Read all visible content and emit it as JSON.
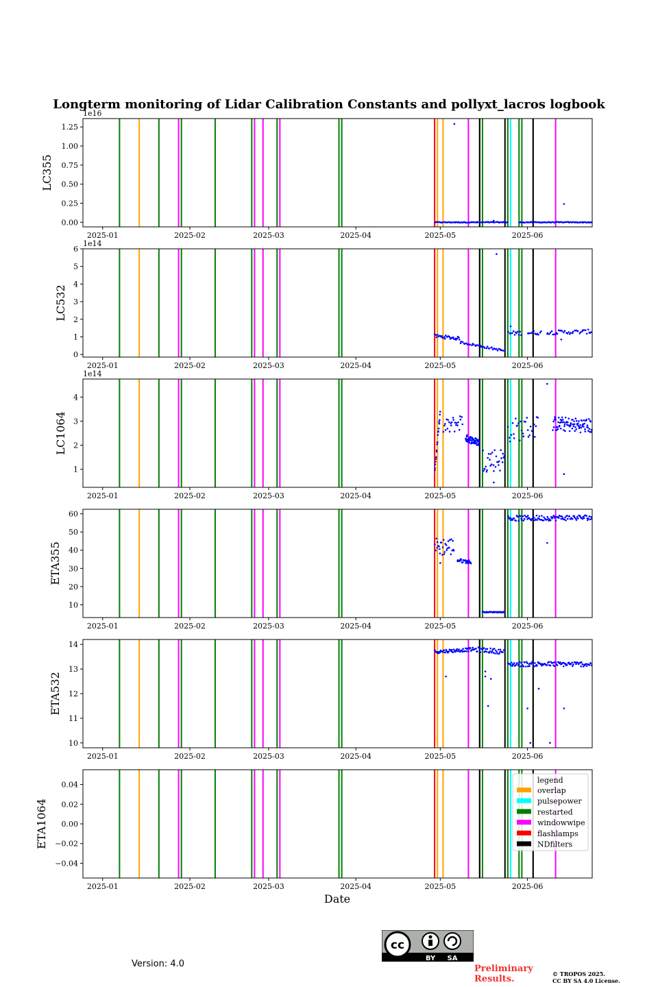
{
  "chart_data": {
    "type": "scatter",
    "title": "Longterm monitoring of Lidar Calibration Constants and pollyxt_lacros logbook",
    "xlabel": "Date",
    "x_range": [
      "2024-12-25",
      "2025-06-24"
    ],
    "x_ticks": [
      {
        "date": "2025-01-01",
        "label": "2025-01"
      },
      {
        "date": "2025-02-01",
        "label": "2025-02"
      },
      {
        "date": "2025-03-01",
        "label": "2025-03"
      },
      {
        "date": "2025-04-01",
        "label": "2025-04"
      },
      {
        "date": "2025-05-01",
        "label": "2025-05"
      },
      {
        "date": "2025-06-01",
        "label": "2025-06"
      }
    ],
    "events": [
      {
        "date": "2025-01-07",
        "type": "restarted"
      },
      {
        "date": "2025-01-14",
        "type": "overlap"
      },
      {
        "date": "2025-01-21",
        "type": "restarted"
      },
      {
        "date": "2025-01-28",
        "type": "windowwipe"
      },
      {
        "date": "2025-01-29",
        "type": "restarted"
      },
      {
        "date": "2025-02-10",
        "type": "restarted"
      },
      {
        "date": "2025-02-23",
        "type": "restarted"
      },
      {
        "date": "2025-02-24",
        "type": "windowwipe"
      },
      {
        "date": "2025-02-27",
        "type": "windowwipe"
      },
      {
        "date": "2025-03-04",
        "type": "restarted"
      },
      {
        "date": "2025-03-05",
        "type": "windowwipe"
      },
      {
        "date": "2025-03-26",
        "type": "restarted"
      },
      {
        "date": "2025-03-27",
        "type": "restarted"
      },
      {
        "date": "2025-04-29",
        "type": "flashlamps"
      },
      {
        "date": "2025-04-30",
        "type": "overlap"
      },
      {
        "date": "2025-05-02",
        "type": "overlap"
      },
      {
        "date": "2025-05-11",
        "type": "windowwipe"
      },
      {
        "date": "2025-05-15",
        "type": "restarted"
      },
      {
        "date": "2025-05-15",
        "type": "NDfilters"
      },
      {
        "date": "2025-05-16",
        "type": "restarted"
      },
      {
        "date": "2025-05-24",
        "type": "NDfilters"
      },
      {
        "date": "2025-05-25",
        "type": "restarted"
      },
      {
        "date": "2025-05-26",
        "type": "pulsepower"
      },
      {
        "date": "2025-05-29",
        "type": "restarted"
      },
      {
        "date": "2025-05-30",
        "type": "restarted"
      },
      {
        "date": "2025-06-03",
        "type": "restarted"
      },
      {
        "date": "2025-06-03",
        "type": "NDfilters"
      },
      {
        "date": "2025-06-11",
        "type": "windowwipe"
      }
    ],
    "panels": [
      {
        "name": "LC355",
        "ylabel": "LC355",
        "ylim": [
          -0.06,
          1.36
        ],
        "offset_label": "1e16",
        "yticks": [
          0,
          0.25,
          0.5,
          0.75,
          1.0,
          1.25
        ],
        "ytick_labels": [
          "0.00",
          "0.25",
          "0.50",
          "0.75",
          "1.00",
          "1.25"
        ],
        "series": [
          {
            "from": "2025-04-29",
            "to": "2025-06-24",
            "base": 0.0,
            "jitter": 0.005,
            "n": 150,
            "gaps": [
              [
                "2025-05-25",
                "2025-05-29"
              ]
            ]
          }
        ],
        "points": [
          [
            "2025-05-06",
            1.29
          ],
          [
            "2025-06-14",
            0.24
          ],
          [
            "2025-05-20",
            0.02
          ]
        ]
      },
      {
        "name": "LC532",
        "ylabel": "LC532",
        "ylim": [
          -0.15,
          6.0
        ],
        "offset_label": "1e14",
        "yticks": [
          0,
          1,
          2,
          3,
          4,
          5,
          6
        ],
        "ytick_labels": [
          "0",
          "1",
          "2",
          "3",
          "4",
          "5",
          "6"
        ],
        "series": [
          {
            "from": "2025-04-29",
            "to": "2025-05-08",
            "base": 1.05,
            "slope": -0.15,
            "jitter": 0.1,
            "n": 30
          },
          {
            "from": "2025-05-08",
            "to": "2025-05-24",
            "base": 0.7,
            "slope": -0.5,
            "jitter": 0.06,
            "n": 40
          },
          {
            "from": "2025-05-25",
            "to": "2025-06-24",
            "base": 1.2,
            "slope": 0.1,
            "jitter": 0.12,
            "n": 70,
            "gaps": [
              [
                "2025-05-30",
                "2025-06-01"
              ],
              [
                "2025-06-06",
                "2025-06-08"
              ]
            ]
          }
        ],
        "points": [
          [
            "2025-05-21",
            5.7
          ],
          [
            "2025-05-26",
            1.6
          ],
          [
            "2025-06-13",
            0.85
          ]
        ]
      },
      {
        "name": "LC1064",
        "ylabel": "LC1064",
        "ylim": [
          0.25,
          4.75
        ],
        "offset_label": "1e14",
        "yticks": [
          1,
          2,
          3,
          4
        ],
        "ytick_labels": [
          "1",
          "2",
          "3",
          "4"
        ],
        "series": [
          {
            "from": "2025-04-29",
            "to": "2025-05-01",
            "base": 0.9,
            "slope": 2.5,
            "jitter": 0.1,
            "n": 20
          },
          {
            "from": "2025-05-02",
            "to": "2025-05-09",
            "base": 2.7,
            "slope": 0.3,
            "jitter": 0.35,
            "n": 25
          },
          {
            "from": "2025-05-10",
            "to": "2025-05-15",
            "base": 2.3,
            "slope": -0.2,
            "jitter": 0.15,
            "n": 60
          },
          {
            "from": "2025-05-16",
            "to": "2025-05-24",
            "base": 1.4,
            "slope": 0.0,
            "jitter": 0.5,
            "n": 30
          },
          {
            "from": "2025-05-25",
            "to": "2025-06-05",
            "base": 2.6,
            "slope": 0.2,
            "jitter": 0.5,
            "n": 30
          },
          {
            "from": "2025-06-10",
            "to": "2025-06-24",
            "base": 2.9,
            "slope": -0.1,
            "jitter": 0.3,
            "n": 90
          }
        ],
        "points": [
          [
            "2025-06-08",
            4.55
          ],
          [
            "2025-06-14",
            0.8
          ],
          [
            "2025-05-20",
            0.45
          ]
        ]
      },
      {
        "name": "ETA355",
        "ylabel": "ETA355",
        "ylim": [
          3,
          62.5
        ],
        "offset_label": "",
        "yticks": [
          10,
          20,
          30,
          40,
          50,
          60
        ],
        "ytick_labels": [
          "10",
          "20",
          "30",
          "40",
          "50",
          "60"
        ],
        "series": [
          {
            "from": "2025-04-29",
            "to": "2025-05-06",
            "base": 42,
            "slope": 0,
            "jitter": 5,
            "n": 30
          },
          {
            "from": "2025-05-07",
            "to": "2025-05-12",
            "base": 34.5,
            "slope": -1,
            "jitter": 1,
            "n": 25
          },
          {
            "from": "2025-05-16",
            "to": "2025-05-24",
            "base": 6,
            "slope": 0,
            "jitter": 0.2,
            "n": 40
          },
          {
            "from": "2025-05-25",
            "to": "2025-06-24",
            "base": 57.5,
            "slope": 0.5,
            "jitter": 1.5,
            "n": 110
          }
        ],
        "points": [
          [
            "2025-06-08",
            44
          ],
          [
            "2025-05-01",
            33
          ]
        ]
      },
      {
        "name": "ETA532",
        "ylabel": "ETA532",
        "ylim": [
          9.8,
          14.2
        ],
        "offset_label": "",
        "yticks": [
          10,
          11,
          12,
          13,
          14
        ],
        "ytick_labels": [
          "10",
          "11",
          "12",
          "13",
          "14"
        ],
        "series": [
          {
            "from": "2025-04-29",
            "to": "2025-05-13",
            "base": 13.7,
            "slope": 0.1,
            "jitter": 0.07,
            "n": 60
          },
          {
            "from": "2025-05-13",
            "to": "2025-05-24",
            "base": 13.8,
            "slope": -0.1,
            "jitter": 0.1,
            "n": 40
          },
          {
            "from": "2025-05-25",
            "to": "2025-06-24",
            "base": 13.2,
            "slope": 0,
            "jitter": 0.1,
            "n": 110
          }
        ],
        "points": [
          [
            "2025-05-03",
            12.7
          ],
          [
            "2025-05-17",
            12.7
          ],
          [
            "2025-05-19",
            12.6
          ],
          [
            "2025-05-18",
            11.5
          ],
          [
            "2025-06-01",
            11.4
          ],
          [
            "2025-06-02",
            10.0
          ],
          [
            "2025-06-05",
            12.2
          ],
          [
            "2025-06-14",
            11.4
          ],
          [
            "2025-06-09",
            10.0
          ],
          [
            "2025-05-17",
            12.9
          ]
        ]
      },
      {
        "name": "ETA1064",
        "ylabel": "ETA1064",
        "ylim": [
          -0.055,
          0.055
        ],
        "offset_label": "",
        "yticks": [
          -0.04,
          -0.02,
          0,
          0.02,
          0.04
        ],
        "ytick_labels": [
          "−0.04",
          "−0.02",
          "0.00",
          "0.02",
          "0.04"
        ],
        "series": [],
        "points": []
      }
    ],
    "legend": {
      "title": "legend",
      "position": "top-right",
      "entries": [
        {
          "label": "overlap",
          "color": "#ffa500"
        },
        {
          "label": "pulsepower",
          "color": "#00ffff"
        },
        {
          "label": "restarted",
          "color": "#008000"
        },
        {
          "label": "windowwipe",
          "color": "#ff00ff"
        },
        {
          "label": "flashlamps",
          "color": "#ff0000"
        },
        {
          "label": "NDfilters",
          "color": "#000000"
        }
      ]
    },
    "point_color": "#0000ff"
  },
  "footer": {
    "version": "Version: 4.0",
    "prelim": "Preliminary Results.",
    "copyright_line1": "© TROPOS 2025.",
    "copyright_line2": "CC BY SA 4.0 License.",
    "cc_text": "cc",
    "by_text": "BY",
    "sa_text": "SA"
  }
}
